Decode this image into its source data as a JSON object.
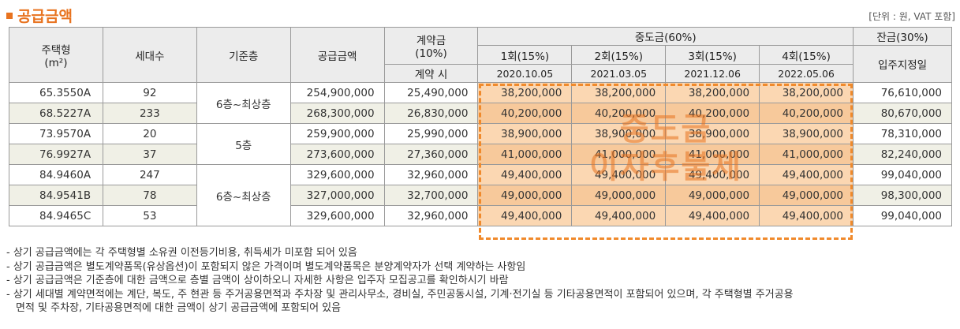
{
  "title": "공급금액",
  "unit_note": "[단위 : 원, VAT 포함]",
  "headers": {
    "type": "주택형",
    "type_unit": "(m²)",
    "households": "세대수",
    "floor": "기준층",
    "price": "공급금액",
    "deposit": "계약금",
    "deposit_pct": "(10%)",
    "deposit_when": "계약 시",
    "middle": "중도금(60%)",
    "middle_cols": [
      "1회(15%)",
      "2회(15%)",
      "3회(15%)",
      "4회(15%)"
    ],
    "middle_dates": [
      "2020.10.05",
      "2021.03.05",
      "2021.12.06",
      "2022.05.06"
    ],
    "balance": "잔금(30%)",
    "balance_when": "입주지정일"
  },
  "rows": [
    {
      "type": "65.3550A",
      "households": "92",
      "price": "254,900,000",
      "deposit": "25,490,000",
      "m1": "38,200,000",
      "m2": "38,200,000",
      "m3": "38,200,000",
      "m4": "38,200,000",
      "balance": "76,610,000"
    },
    {
      "type": "68.5227A",
      "households": "233",
      "price": "268,300,000",
      "deposit": "26,830,000",
      "m1": "40,200,000",
      "m2": "40,200,000",
      "m3": "40,200,000",
      "m4": "40,200,000",
      "balance": "80,670,000"
    },
    {
      "type": "73.9570A",
      "households": "20",
      "price": "259,900,000",
      "deposit": "25,990,000",
      "m1": "38,900,000",
      "m2": "38,900,000",
      "m3": "38,900,000",
      "m4": "38,900,000",
      "balance": "78,310,000"
    },
    {
      "type": "76.9927A",
      "households": "37",
      "price": "273,600,000",
      "deposit": "27,360,000",
      "m1": "41,000,000",
      "m2": "41,000,000",
      "m3": "41,000,000",
      "m4": "41,000,000",
      "balance": "82,240,000"
    },
    {
      "type": "84.9460A",
      "households": "247",
      "price": "329,600,000",
      "deposit": "32,960,000",
      "m1": "49,400,000",
      "m2": "49,400,000",
      "m3": "49,400,000",
      "m4": "49,400,000",
      "balance": "99,040,000"
    },
    {
      "type": "84.9541B",
      "households": "78",
      "price": "327,000,000",
      "deposit": "32,700,000",
      "m1": "49,000,000",
      "m2": "49,000,000",
      "m3": "49,000,000",
      "m4": "49,000,000",
      "balance": "98,300,000"
    },
    {
      "type": "84.9465C",
      "households": "53",
      "price": "329,600,000",
      "deposit": "32,960,000",
      "m1": "49,400,000",
      "m2": "49,400,000",
      "m3": "49,400,000",
      "m4": "49,400,000",
      "balance": "99,040,000"
    }
  ],
  "floors": [
    "6층~최상층",
    "5층",
    "6층~최상층"
  ],
  "stamp": {
    "line1": "중도금",
    "line2": "이자후불제"
  },
  "colors": {
    "accent": "#e8731f",
    "middle_fill": "#fbd7b2"
  },
  "notes": [
    "- 상기 공급금액에는 각 주택형별 소유권 이전등기비용, 취득세가 미포함 되어 있음",
    "- 상기 공급금액은 별도계약품목(유상옵션)이 포함되지 않은 가격이며 별도계약품목은 분양계약자가 선택 계약하는 사항임",
    "- 상기 공급금액은 기준층에 대한 금액으로 층별 금액이 상이하오니 자세한 사항은 입주자 모집공고를 확인하시기 바람",
    "- 상기 세대별 계약면적에는 계단, 복도, 주 현관 등 주거공용면적과 주차장 및 관리사무소, 경비실, 주민공동시설, 기계·전기실 등 기타공용면적이 포함되어 있으며, 각 주택형별 주거공용",
    "면적 및 주차장, 기타공용면적에 대한 금액이 상기 공급금액에 포함되어 있음"
  ]
}
